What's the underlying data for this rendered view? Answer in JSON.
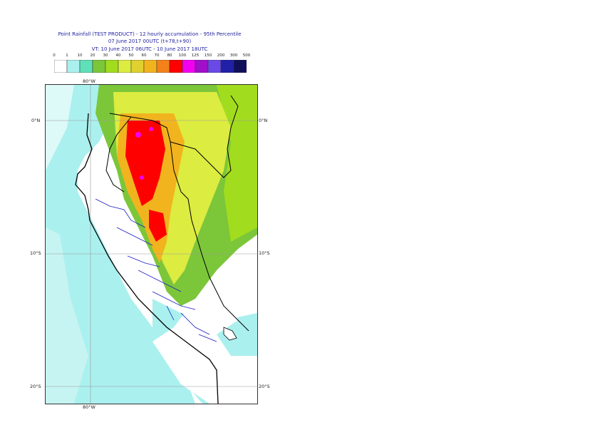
{
  "title": {
    "line1": "Point Rainfall (TEST PRODUCT) - 12 hourly accumulation - 95th Percentile",
    "line2": "07 June 2017 00UTC (t+78,t+90)",
    "line3": "VT: 10 June 2017 06UTC - 10 June 2017 18UTC"
  },
  "legend": {
    "ticks": [
      "0",
      "1",
      "10",
      "20",
      "30",
      "40",
      "50",
      "60",
      "70",
      "80",
      "100",
      "125",
      "150",
      "200",
      "300",
      "500"
    ],
    "colors": [
      "#ffffff",
      "#aaf0ee",
      "#5fe0b8",
      "#7cc63a",
      "#a2dc1e",
      "#dcec40",
      "#e0d030",
      "#f2b41e",
      "#f4821a",
      "#ff0000",
      "#f200f2",
      "#a010c8",
      "#6a4ae6",
      "#2020a8",
      "#10105a"
    ]
  },
  "axes": {
    "top_label": "80°W",
    "bottom_label": "80°W",
    "left_labels": [
      "0°N",
      "10°S",
      "20°S"
    ],
    "right_labels": [
      "0°N",
      "10°S",
      "20°S"
    ]
  }
}
